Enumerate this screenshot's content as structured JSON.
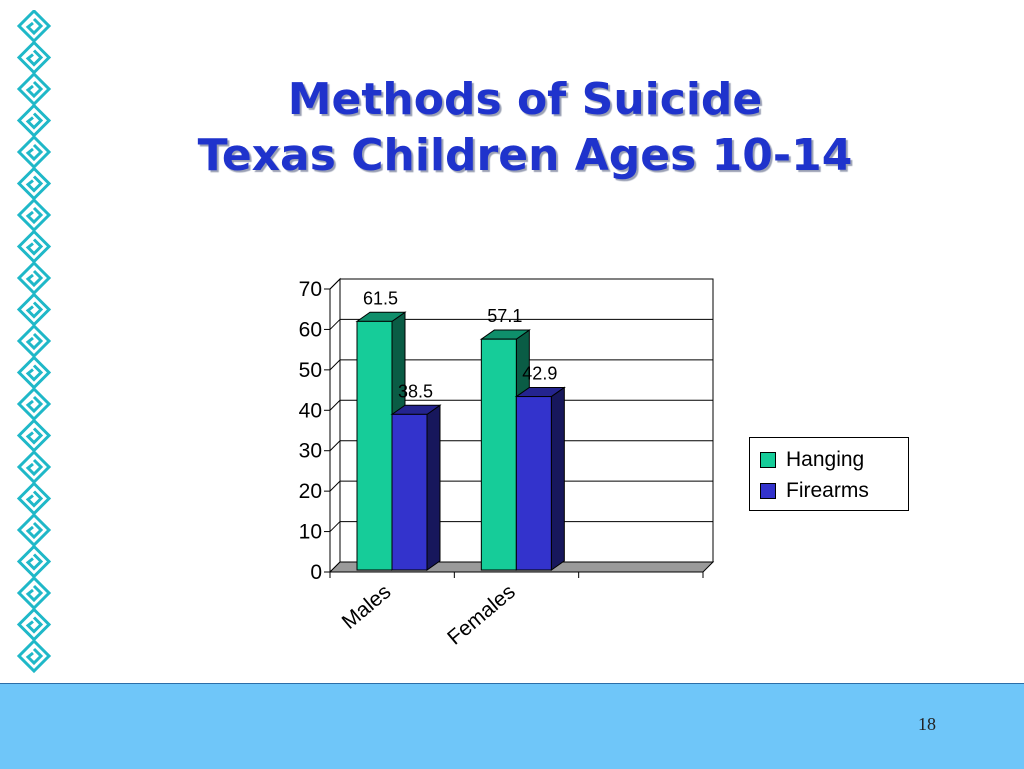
{
  "slide": {
    "title_line1": "Methods of Suicide",
    "title_line2": "Texas Children Ages 10-14",
    "page_number": "18"
  },
  "colors": {
    "title": "#1f33cc",
    "hanging": "#16cc99",
    "firearms": "#3333cc",
    "footer": "#6fc6f9",
    "border_motif": "#1fb8c8"
  },
  "chart_data": {
    "type": "bar",
    "style": "3d-clustered-column",
    "categories": [
      "Males",
      "Females"
    ],
    "series": [
      {
        "name": "Hanging",
        "values": [
          61.5,
          57.1
        ]
      },
      {
        "name": "Firearms",
        "values": [
          38.5,
          42.9
        ]
      }
    ],
    "data_labels": [
      [
        "61.5",
        "57.1"
      ],
      [
        "38.5",
        "42.9"
      ]
    ],
    "yticks": [
      "0",
      "10",
      "20",
      "30",
      "40",
      "50",
      "60",
      "70"
    ],
    "ylim": [
      0,
      70
    ],
    "grid": true,
    "legend": "right"
  }
}
